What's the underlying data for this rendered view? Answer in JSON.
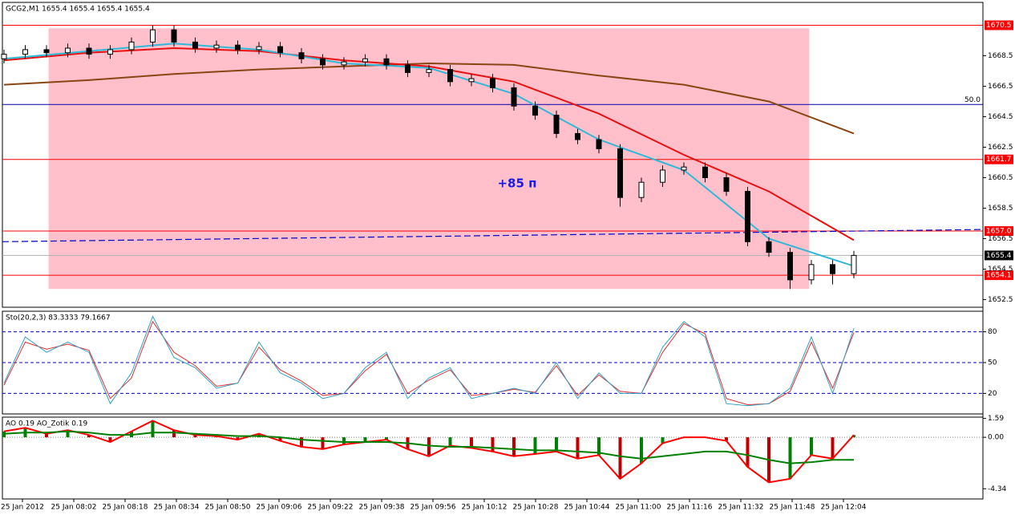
{
  "chart_data": [
    {
      "type": "candlestick",
      "title": "GCG2,M1 1655.4 1655.4 1655.4 1655.4",
      "open": [
        1668.3,
        1668.6,
        1668.9,
        1668.7,
        1669.0,
        1668.6,
        1668.9,
        1669.4,
        1670.2,
        1669.4,
        1669.0,
        1669.2,
        1668.9,
        1669.1,
        1668.7,
        1668.3,
        1667.9,
        1668.1,
        1668.3,
        1667.9,
        1667.4,
        1667.6,
        1666.8,
        1667.0,
        1666.4,
        1665.2,
        1664.6,
        1663.4,
        1663.0,
        1662.4,
        1659.2,
        1660.2,
        1661.0,
        1661.2,
        1660.5,
        1659.6,
        1656.3,
        1655.6,
        1653.8,
        1654.8,
        1654.2
      ],
      "high": [
        1668.9,
        1669.2,
        1669.2,
        1669.3,
        1669.3,
        1669.2,
        1669.7,
        1670.5,
        1670.5,
        1669.7,
        1669.5,
        1669.5,
        1669.4,
        1669.4,
        1669.0,
        1668.6,
        1668.4,
        1668.6,
        1668.6,
        1668.2,
        1667.9,
        1667.9,
        1667.3,
        1667.3,
        1666.7,
        1665.5,
        1664.9,
        1663.7,
        1663.3,
        1662.7,
        1660.5,
        1661.3,
        1661.5,
        1661.5,
        1660.8,
        1659.9,
        1656.6,
        1655.9,
        1655.1,
        1655.1,
        1655.7
      ],
      "low": [
        1668.0,
        1668.3,
        1668.4,
        1668.4,
        1668.3,
        1668.3,
        1668.6,
        1669.1,
        1669.1,
        1668.7,
        1668.7,
        1668.6,
        1668.6,
        1668.4,
        1668.0,
        1667.6,
        1667.6,
        1667.8,
        1667.6,
        1667.1,
        1667.1,
        1666.5,
        1666.5,
        1666.1,
        1664.9,
        1664.3,
        1663.1,
        1662.7,
        1662.1,
        1658.6,
        1658.9,
        1659.9,
        1660.7,
        1660.2,
        1659.3,
        1656.0,
        1655.3,
        1653.2,
        1653.5,
        1653.5,
        1653.9
      ],
      "close": [
        1668.6,
        1668.9,
        1668.7,
        1669.0,
        1668.6,
        1668.9,
        1669.4,
        1670.2,
        1669.4,
        1669.0,
        1669.2,
        1668.9,
        1669.1,
        1668.7,
        1668.3,
        1667.9,
        1668.1,
        1668.3,
        1667.9,
        1667.4,
        1667.6,
        1666.8,
        1667.0,
        1666.4,
        1665.2,
        1664.6,
        1663.4,
        1663.0,
        1662.4,
        1659.2,
        1660.2,
        1661.0,
        1661.2,
        1660.5,
        1659.6,
        1656.3,
        1655.6,
        1653.8,
        1654.8,
        1654.2,
        1655.4
      ],
      "color": "#000000",
      "ylim": [
        1652.0,
        1672.0
      ],
      "yticks": [
        1652.5,
        1654.5,
        1656.5,
        1658.5,
        1660.5,
        1662.5,
        1664.5,
        1666.5,
        1668.5
      ],
      "overlays": [
        {
          "color": "#8b4513",
          "x": [
            0,
            4,
            8,
            12,
            16,
            20,
            24,
            28,
            32,
            36,
            40
          ],
          "values": [
            1666.6,
            1666.9,
            1667.3,
            1667.6,
            1667.8,
            1668.0,
            1667.9,
            1667.2,
            1666.6,
            1665.5,
            1663.4
          ]
        },
        {
          "color": "#e81010",
          "x": [
            0,
            4,
            8,
            12,
            16,
            20,
            24,
            28,
            32,
            36,
            40
          ],
          "values": [
            1668.2,
            1668.7,
            1669.0,
            1668.8,
            1668.2,
            1667.8,
            1666.8,
            1664.7,
            1662.0,
            1659.6,
            1656.4
          ]
        },
        {
          "color": "#30b8d8",
          "x": [
            0,
            4,
            8,
            12,
            16,
            20,
            24,
            28,
            32,
            36,
            40
          ],
          "values": [
            1668.3,
            1668.8,
            1669.3,
            1668.9,
            1668.0,
            1667.7,
            1666.0,
            1663.0,
            1661.0,
            1656.5,
            1654.7
          ]
        }
      ],
      "zone": {
        "x": [
          2.1,
          37.9
        ],
        "y": [
          1653.2,
          1670.3
        ],
        "color": "#ffc0cb"
      },
      "dashed_line": {
        "y": [
          1656.3,
          1657.1
        ],
        "color": "#0000cc"
      },
      "levels": [
        1670.5,
        1661.7,
        {
          "value": 1657.0,
          "label": "1657.0"
        },
        1654.1
      ],
      "level_color": "#ff0000",
      "current": 1655.4,
      "fib": {
        "value": 1665.3,
        "label": "50.0",
        "color": "#0000aa"
      },
      "annotation": "+85 п"
    },
    {
      "type": "line",
      "title": "Sto(20,2,3) 83.3333 79.1667",
      "series": [
        {
          "color": "#e03030",
          "values": [
            28,
            70,
            63,
            68,
            62,
            15,
            35,
            90,
            60,
            47,
            27,
            30,
            65,
            43,
            32,
            18,
            20,
            42,
            58,
            20,
            33,
            43,
            18,
            20,
            24,
            21,
            47,
            18,
            38,
            22,
            20,
            60,
            88,
            78,
            15,
            9,
            10,
            22,
            70,
            25,
            79.2
          ]
        },
        {
          "color": "#30a0c8",
          "values": [
            30,
            75,
            60,
            70,
            60,
            10,
            40,
            95,
            55,
            45,
            25,
            30,
            70,
            40,
            30,
            15,
            20,
            45,
            60,
            15,
            35,
            45,
            15,
            20,
            25,
            20,
            50,
            15,
            40,
            20,
            20,
            65,
            90,
            75,
            10,
            8,
            10,
            25,
            75,
            20,
            83.3
          ]
        }
      ],
      "ylim": [
        0,
        100
      ],
      "yticks": [
        20,
        50,
        80
      ],
      "grid": true,
      "grid_color": "#0000cc"
    },
    {
      "type": "bar",
      "title": "AO 0.19  AO_Zotik 0.19",
      "values": [
        0.5,
        0.8,
        0.3,
        0.6,
        0.2,
        -0.4,
        0.5,
        1.4,
        0.6,
        0.2,
        0.1,
        -0.2,
        0.3,
        -0.3,
        -0.8,
        -1.0,
        -0.6,
        -0.4,
        -0.2,
        -1.0,
        -1.6,
        -0.7,
        -0.9,
        -1.2,
        -1.6,
        -1.4,
        -1.2,
        -1.8,
        -1.5,
        -3.5,
        -2.2,
        -0.5,
        0.0,
        0.0,
        -0.3,
        -2.5,
        -3.8,
        -3.5,
        -1.5,
        -1.8,
        0.19
      ],
      "up_color": "#008000",
      "down_color": "#c00000",
      "line_color": "#ff0000",
      "series": [
        {
          "color": "#008000",
          "values": [
            0.3,
            0.4,
            0.4,
            0.5,
            0.4,
            0.2,
            0.2,
            0.4,
            0.4,
            0.3,
            0.2,
            0.1,
            0.1,
            0.0,
            -0.2,
            -0.3,
            -0.4,
            -0.4,
            -0.4,
            -0.5,
            -0.7,
            -0.8,
            -0.8,
            -0.9,
            -1.0,
            -1.1,
            -1.1,
            -1.2,
            -1.3,
            -1.6,
            -1.8,
            -1.6,
            -1.4,
            -1.2,
            -1.2,
            -1.5,
            -1.9,
            -2.2,
            -2.1,
            -1.9,
            -1.9
          ]
        }
      ],
      "ylim": [
        -5.2,
        1.7
      ],
      "yticks": [
        1.59,
        {
          "value": 0,
          "label": "0.00"
        },
        -4.34
      ],
      "x_labels": [
        "25 Jan 2012",
        "25 Jan 08:02",
        "25 Jan 08:18",
        "25 Jan 08:34",
        "25 Jan 08:50",
        "25 Jan 09:06",
        "25 Jan 09:22",
        "25 Jan 09:38",
        "25 Jan 09:56",
        "25 Jan 10:12",
        "25 Jan 10:28",
        "25 Jan 10:44",
        "25 Jan 11:00",
        "25 Jan 11:16",
        "25 Jan 11:32",
        "25 Jan 11:48",
        "25 Jan 12:04"
      ]
    }
  ]
}
